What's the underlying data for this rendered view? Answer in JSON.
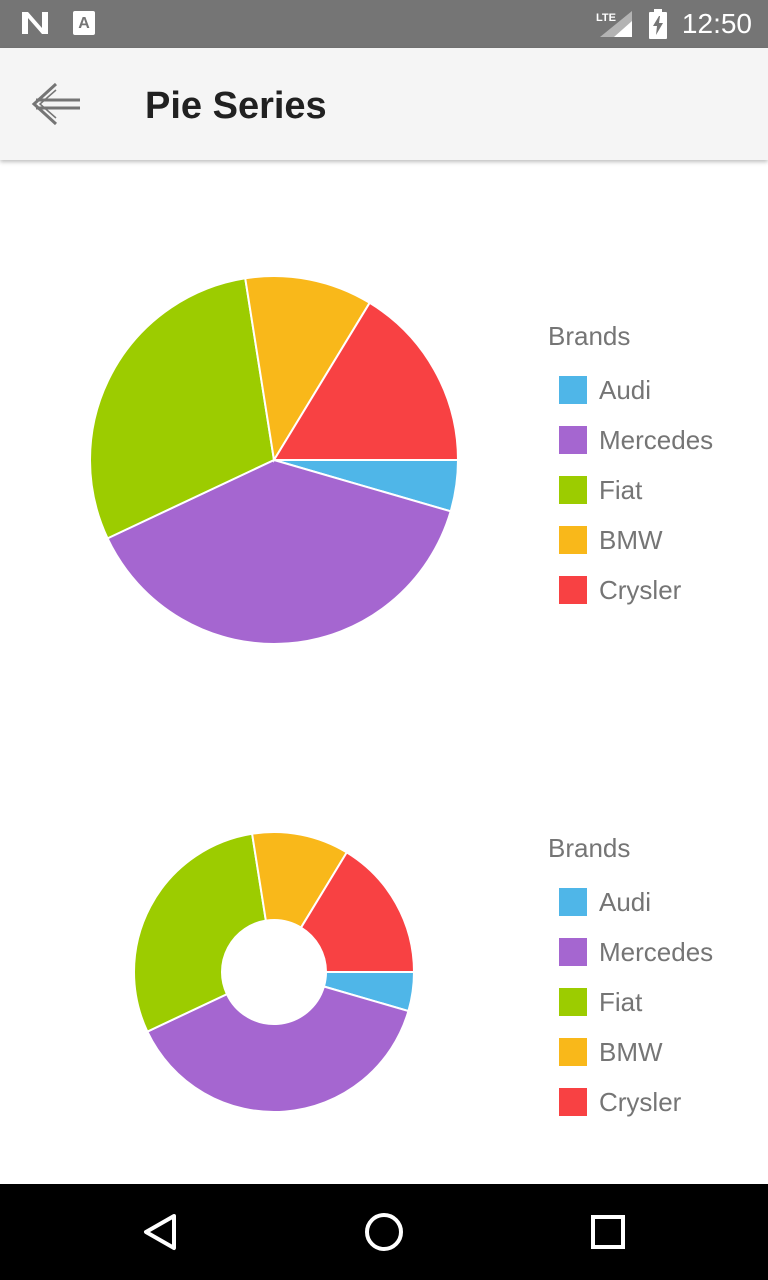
{
  "status_bar": {
    "time": "12:50",
    "network": "LTE",
    "icons": [
      "n-logo-icon",
      "a-notification-icon",
      "lte-signal-icon",
      "battery-charging-icon"
    ]
  },
  "app_bar": {
    "title": "Pie Series",
    "back_icon": "arrow-left-icon"
  },
  "nav_bar": {
    "icons": [
      "back-triangle-icon",
      "home-circle-icon",
      "recents-square-icon"
    ]
  },
  "colors": {
    "Audi": "#4fb6e8",
    "Mercedes": "#a566d0",
    "Fiat": "#9ccc00",
    "BMW": "#f9b81a",
    "Crysler": "#f84143"
  },
  "chart_data": [
    {
      "type": "pie",
      "legend_title": "Brands",
      "legend_position": "right",
      "categories": [
        "Audi",
        "Mercedes",
        "Fiat",
        "BMW",
        "Crysler"
      ],
      "values": [
        4.5,
        38.5,
        29.5,
        11.2,
        16.3
      ]
    },
    {
      "type": "pie",
      "variant": "donut",
      "legend_title": "Brands",
      "legend_position": "right",
      "categories": [
        "Audi",
        "Mercedes",
        "Fiat",
        "BMW",
        "Crysler"
      ],
      "values": [
        4.5,
        38.5,
        29.5,
        11.2,
        16.3
      ]
    }
  ]
}
